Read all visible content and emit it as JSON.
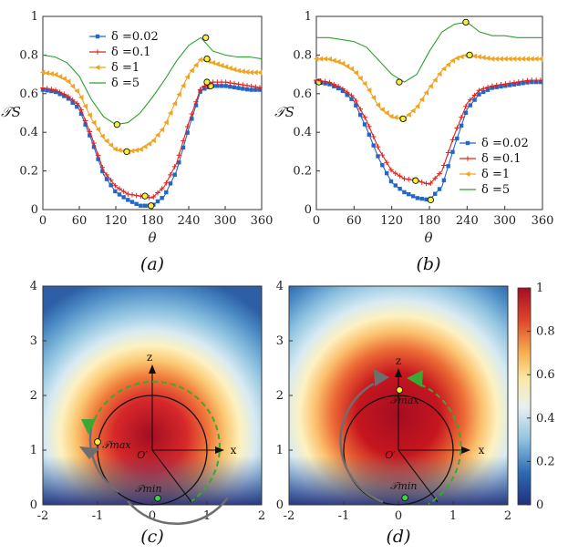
{
  "colors": {
    "blue": "#2166c9",
    "red": "#e3201b",
    "orange": "#f0a420",
    "green": "#2ca02c",
    "marker": "#f4f13a",
    "arrow_grey": "#6e6e6e"
  },
  "chart_data": [
    {
      "type": "line",
      "panel": "a",
      "panel_label": "(a)",
      "xlabel": "θ",
      "ylabel": "𝒯S",
      "xlim": [
        0,
        360
      ],
      "ylim": [
        0,
        1
      ],
      "xticks": [
        "0",
        "60",
        "120",
        "180",
        "240",
        "300",
        "360"
      ],
      "yticks": [
        "0",
        "0.2",
        "0.4",
        "0.6",
        "0.8",
        "1"
      ],
      "legend_position": "top-left",
      "series": [
        {
          "name": "δ =0.02",
          "color": "#2166c9",
          "marker": "square",
          "x": [
            0,
            20,
            40,
            60,
            80,
            100,
            120,
            140,
            160,
            180,
            200,
            220,
            240,
            260,
            280,
            300,
            320,
            340,
            360
          ],
          "y": [
            0.62,
            0.61,
            0.58,
            0.52,
            0.36,
            0.18,
            0.09,
            0.05,
            0.02,
            0.02,
            0.07,
            0.2,
            0.42,
            0.62,
            0.64,
            0.64,
            0.63,
            0.62,
            0.62
          ],
          "highlight": [
            {
              "x": 178,
              "y": 0.02
            },
            {
              "x": 276,
              "y": 0.64
            }
          ]
        },
        {
          "name": "δ =0.1",
          "color": "#e3201b",
          "marker": "plus",
          "x": [
            0,
            20,
            40,
            60,
            80,
            100,
            120,
            140,
            160,
            180,
            200,
            220,
            240,
            260,
            280,
            300,
            320,
            340,
            360
          ],
          "y": [
            0.63,
            0.62,
            0.59,
            0.54,
            0.38,
            0.2,
            0.12,
            0.08,
            0.07,
            0.06,
            0.12,
            0.24,
            0.45,
            0.63,
            0.66,
            0.66,
            0.65,
            0.64,
            0.63
          ],
          "highlight": [
            {
              "x": 168,
              "y": 0.07
            },
            {
              "x": 270,
              "y": 0.66
            }
          ]
        },
        {
          "name": "δ =1",
          "color": "#f0a420",
          "marker": "triangle-left",
          "x": [
            0,
            20,
            40,
            60,
            80,
            100,
            120,
            140,
            160,
            180,
            200,
            220,
            240,
            260,
            280,
            300,
            320,
            340,
            360
          ],
          "y": [
            0.71,
            0.7,
            0.67,
            0.6,
            0.47,
            0.37,
            0.31,
            0.3,
            0.31,
            0.35,
            0.43,
            0.57,
            0.7,
            0.78,
            0.76,
            0.74,
            0.72,
            0.71,
            0.71
          ],
          "highlight": [
            {
              "x": 138,
              "y": 0.3
            },
            {
              "x": 270,
              "y": 0.78
            }
          ]
        },
        {
          "name": "δ =5",
          "color": "#2ca02c",
          "marker": "none",
          "x": [
            0,
            20,
            40,
            60,
            80,
            100,
            120,
            140,
            160,
            180,
            200,
            220,
            240,
            260,
            280,
            300,
            320,
            340,
            360
          ],
          "y": [
            0.8,
            0.79,
            0.76,
            0.69,
            0.57,
            0.48,
            0.44,
            0.45,
            0.5,
            0.58,
            0.67,
            0.77,
            0.85,
            0.89,
            0.82,
            0.8,
            0.79,
            0.79,
            0.78
          ],
          "highlight": [
            {
              "x": 122,
              "y": 0.44
            },
            {
              "x": 268,
              "y": 0.89
            }
          ]
        }
      ]
    },
    {
      "type": "line",
      "panel": "b",
      "panel_label": "(b)",
      "xlabel": "θ",
      "ylabel": "𝒯S",
      "xlim": [
        0,
        360
      ],
      "ylim": [
        0,
        1
      ],
      "xticks": [
        "0",
        "60",
        "120",
        "180",
        "240",
        "300",
        "360"
      ],
      "yticks": [
        "0",
        "0.2",
        "0.4",
        "0.6",
        "0.8",
        "1"
      ],
      "legend_position": "bottom-right",
      "series": [
        {
          "name": "δ =0.02",
          "color": "#2166c9",
          "marker": "square",
          "x": [
            0,
            20,
            40,
            60,
            80,
            100,
            120,
            140,
            160,
            180,
            200,
            220,
            240,
            260,
            280,
            300,
            320,
            340,
            360
          ],
          "y": [
            0.66,
            0.65,
            0.62,
            0.56,
            0.42,
            0.26,
            0.14,
            0.09,
            0.06,
            0.05,
            0.12,
            0.33,
            0.52,
            0.6,
            0.63,
            0.64,
            0.65,
            0.66,
            0.66
          ],
          "highlight": [
            {
              "x": 4,
              "y": 0.66
            },
            {
              "x": 182,
              "y": 0.05
            }
          ]
        },
        {
          "name": "δ =0.1",
          "color": "#e3201b",
          "marker": "plus",
          "x": [
            0,
            20,
            40,
            60,
            80,
            100,
            120,
            140,
            160,
            180,
            200,
            220,
            240,
            260,
            280,
            300,
            320,
            340,
            360
          ],
          "y": [
            0.67,
            0.66,
            0.63,
            0.58,
            0.46,
            0.31,
            0.2,
            0.16,
            0.15,
            0.13,
            0.2,
            0.39,
            0.55,
            0.62,
            0.64,
            0.65,
            0.66,
            0.67,
            0.67
          ],
          "highlight": [
            {
              "x": 158,
              "y": 0.15
            }
          ]
        },
        {
          "name": "δ =1",
          "color": "#f0a420",
          "marker": "triangle-left",
          "x": [
            0,
            20,
            40,
            60,
            80,
            100,
            120,
            140,
            160,
            180,
            200,
            220,
            240,
            260,
            280,
            300,
            320,
            340,
            360
          ],
          "y": [
            0.78,
            0.78,
            0.76,
            0.72,
            0.64,
            0.53,
            0.48,
            0.47,
            0.53,
            0.63,
            0.72,
            0.78,
            0.8,
            0.79,
            0.78,
            0.78,
            0.78,
            0.78,
            0.78
          ],
          "highlight": [
            {
              "x": 138,
              "y": 0.47
            },
            {
              "x": 244,
              "y": 0.8
            }
          ]
        },
        {
          "name": "δ =5",
          "color": "#2ca02c",
          "marker": "none",
          "x": [
            0,
            20,
            40,
            60,
            80,
            100,
            120,
            140,
            160,
            180,
            200,
            220,
            240,
            260,
            280,
            300,
            320,
            340,
            360
          ],
          "y": [
            0.89,
            0.89,
            0.88,
            0.87,
            0.84,
            0.77,
            0.7,
            0.66,
            0.7,
            0.82,
            0.92,
            0.96,
            0.97,
            0.92,
            0.9,
            0.9,
            0.89,
            0.89,
            0.89
          ],
          "highlight": [
            {
              "x": 132,
              "y": 0.66
            },
            {
              "x": 238,
              "y": 0.97
            }
          ]
        }
      ]
    },
    {
      "type": "heatmap",
      "panel": "c",
      "panel_label": "(c)",
      "xlim": [
        -2,
        2
      ],
      "ylim": [
        0,
        4
      ],
      "xticks": [
        "-2",
        "-1",
        "0",
        "1",
        "2"
      ],
      "yticks": [
        "0",
        "1",
        "2",
        "3",
        "4"
      ],
      "axis_x_label": "x",
      "axis_z_label": "z",
      "origin_label": "O′",
      "center": [
        0,
        1
      ],
      "radius": 1,
      "field_peak": [
        0,
        1.15
      ],
      "tmax_label": "𝒯max",
      "tmin_label": "𝒯min",
      "tmax_point": [
        -1.0,
        1.15
      ],
      "tmin_point": [
        0.1,
        0.12
      ],
      "rotation": "counterclockwise"
    },
    {
      "type": "heatmap",
      "panel": "d",
      "panel_label": "(d)",
      "xlim": [
        -2,
        2
      ],
      "ylim": [
        0,
        4
      ],
      "xticks": [
        "-2",
        "-1",
        "0",
        "1",
        "2"
      ],
      "yticks": [
        "0",
        "1",
        "2",
        "3",
        "4"
      ],
      "axis_x_label": "x",
      "axis_z_label": "z",
      "origin_label": "O′",
      "center": [
        0,
        1
      ],
      "radius": 1,
      "field_peak": [
        0,
        1.6
      ],
      "tmax_label": "𝒯max",
      "tmin_label": "𝒯min",
      "tmax_point": [
        0.02,
        2.1
      ],
      "tmin_point": [
        0.12,
        0.13
      ],
      "rotation": "counterclockwise"
    }
  ],
  "colorbar": {
    "ticks": [
      "0",
      "0.2",
      "0.4",
      "0.6",
      "0.8",
      "1"
    ],
    "range": [
      0,
      1
    ]
  }
}
